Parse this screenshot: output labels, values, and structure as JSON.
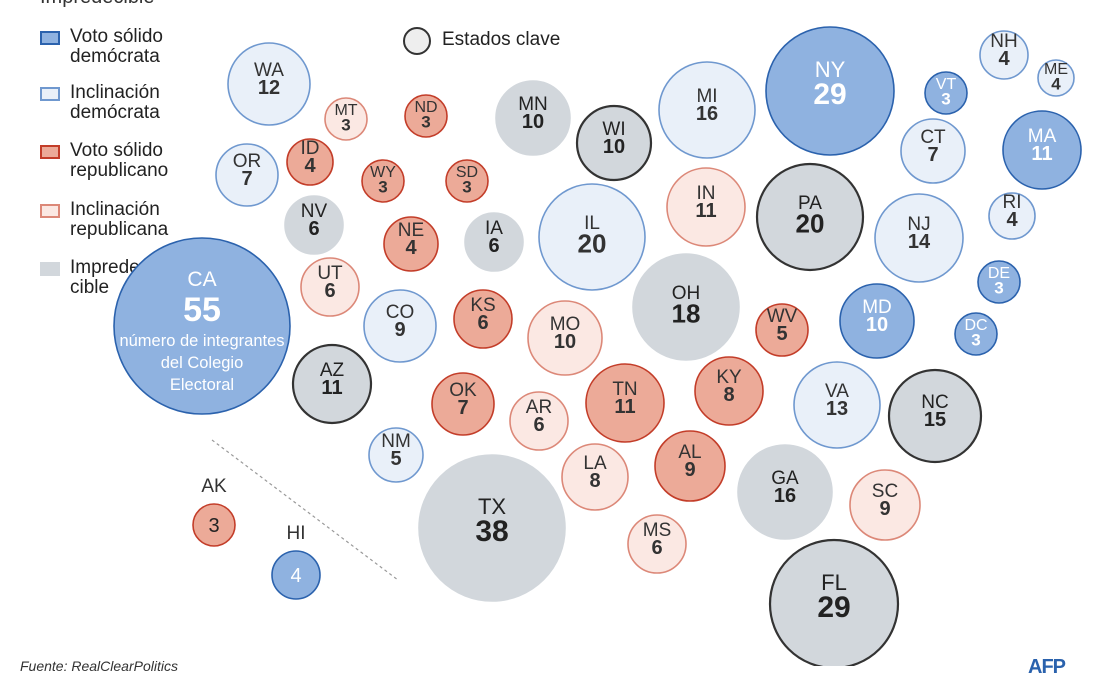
{
  "legend": {
    "title": "Impredecible",
    "items": [
      {
        "label": "Voto sólido demócrata",
        "category": "solid_dem"
      },
      {
        "label": "Inclinación demócrata",
        "category": "lean_dem"
      },
      {
        "label": "Voto sólido republicano",
        "category": "solid_rep"
      },
      {
        "label": "Inclinación republicana",
        "category": "lean_rep"
      },
      {
        "label": "Imprede-cible",
        "category": "tossup"
      }
    ],
    "key_states_label": "Estados clave"
  },
  "colors": {
    "solid_dem": {
      "fill": "#8fb2e0",
      "stroke": "#2b62ad",
      "text": "#ffffff"
    },
    "lean_dem": {
      "fill": "#e9f0f9",
      "stroke": "#6f98cf",
      "text": "#333333"
    },
    "solid_rep": {
      "fill": "#ecaa98",
      "stroke": "#c33d29",
      "text": "#333333"
    },
    "lean_rep": {
      "fill": "#fbe8e3",
      "stroke": "#dc8878",
      "text": "#333333"
    },
    "tossup": {
      "fill": "#d2d7dc",
      "stroke": "#d2d7dc",
      "text": "#222222"
    },
    "key_stroke": "#333333"
  },
  "ca_caption": [
    "número de integrantes",
    "del Colegio",
    "Electoral"
  ],
  "states": [
    {
      "abbr": "CA",
      "votes": 55,
      "category": "solid_dem",
      "key": false
    },
    {
      "abbr": "WA",
      "votes": 12,
      "category": "lean_dem",
      "key": false
    },
    {
      "abbr": "OR",
      "votes": 7,
      "category": "lean_dem",
      "key": false
    },
    {
      "abbr": "ID",
      "votes": 4,
      "category": "solid_rep",
      "key": false
    },
    {
      "abbr": "MT",
      "votes": 3,
      "category": "lean_rep",
      "key": false
    },
    {
      "abbr": "WY",
      "votes": 3,
      "category": "solid_rep",
      "key": false
    },
    {
      "abbr": "ND",
      "votes": 3,
      "category": "solid_rep",
      "key": false
    },
    {
      "abbr": "SD",
      "votes": 3,
      "category": "solid_rep",
      "key": false
    },
    {
      "abbr": "NV",
      "votes": 6,
      "category": "tossup",
      "key": false
    },
    {
      "abbr": "UT",
      "votes": 6,
      "category": "lean_rep",
      "key": false
    },
    {
      "abbr": "NE",
      "votes": 4,
      "category": "solid_rep",
      "key": false
    },
    {
      "abbr": "IA",
      "votes": 6,
      "category": "tossup",
      "key": false
    },
    {
      "abbr": "CO",
      "votes": 9,
      "category": "lean_dem",
      "key": false
    },
    {
      "abbr": "AZ",
      "votes": 11,
      "category": "tossup",
      "key": true
    },
    {
      "abbr": "NM",
      "votes": 5,
      "category": "lean_dem",
      "key": false
    },
    {
      "abbr": "KS",
      "votes": 6,
      "category": "solid_rep",
      "key": false
    },
    {
      "abbr": "OK",
      "votes": 7,
      "category": "solid_rep",
      "key": false
    },
    {
      "abbr": "TX",
      "votes": 38,
      "category": "tossup",
      "key": false
    },
    {
      "abbr": "MN",
      "votes": 10,
      "category": "tossup",
      "key": false
    },
    {
      "abbr": "WI",
      "votes": 10,
      "category": "tossup",
      "key": true
    },
    {
      "abbr": "MI",
      "votes": 16,
      "category": "lean_dem",
      "key": false
    },
    {
      "abbr": "IL",
      "votes": 20,
      "category": "lean_dem",
      "key": false
    },
    {
      "abbr": "IN",
      "votes": 11,
      "category": "lean_rep",
      "key": false
    },
    {
      "abbr": "OH",
      "votes": 18,
      "category": "tossup",
      "key": false
    },
    {
      "abbr": "MO",
      "votes": 10,
      "category": "lean_rep",
      "key": false
    },
    {
      "abbr": "AR",
      "votes": 6,
      "category": "lean_rep",
      "key": false
    },
    {
      "abbr": "LA",
      "votes": 8,
      "category": "lean_rep",
      "key": false
    },
    {
      "abbr": "MS",
      "votes": 6,
      "category": "lean_rep",
      "key": false
    },
    {
      "abbr": "TN",
      "votes": 11,
      "category": "solid_rep",
      "key": false
    },
    {
      "abbr": "KY",
      "votes": 8,
      "category": "solid_rep",
      "key": false
    },
    {
      "abbr": "AL",
      "votes": 9,
      "category": "solid_rep",
      "key": false
    },
    {
      "abbr": "GA",
      "votes": 16,
      "category": "tossup",
      "key": false
    },
    {
      "abbr": "FL",
      "votes": 29,
      "category": "tossup",
      "key": true
    },
    {
      "abbr": "SC",
      "votes": 9,
      "category": "lean_rep",
      "key": false
    },
    {
      "abbr": "NC",
      "votes": 15,
      "category": "tossup",
      "key": true
    },
    {
      "abbr": "VA",
      "votes": 13,
      "category": "lean_dem",
      "key": false
    },
    {
      "abbr": "WV",
      "votes": 5,
      "category": "solid_rep",
      "key": false
    },
    {
      "abbr": "PA",
      "votes": 20,
      "category": "tossup",
      "key": true
    },
    {
      "abbr": "NY",
      "votes": 29,
      "category": "solid_dem",
      "key": false
    },
    {
      "abbr": "NJ",
      "votes": 14,
      "category": "lean_dem",
      "key": false
    },
    {
      "abbr": "MD",
      "votes": 10,
      "category": "solid_dem",
      "key": false
    },
    {
      "abbr": "DE",
      "votes": 3,
      "category": "solid_dem",
      "key": false
    },
    {
      "abbr": "DC",
      "votes": 3,
      "category": "solid_dem",
      "key": false
    },
    {
      "abbr": "CT",
      "votes": 7,
      "category": "lean_dem",
      "key": false
    },
    {
      "abbr": "RI",
      "votes": 4,
      "category": "lean_dem",
      "key": false
    },
    {
      "abbr": "MA",
      "votes": 11,
      "category": "solid_dem",
      "key": false
    },
    {
      "abbr": "VT",
      "votes": 3,
      "category": "solid_dem",
      "key": false
    },
    {
      "abbr": "NH",
      "votes": 4,
      "category": "lean_dem",
      "key": false
    },
    {
      "abbr": "ME",
      "votes": 4,
      "category": "lean_dem",
      "key": false
    },
    {
      "abbr": "AK",
      "votes": 3,
      "category": "solid_rep",
      "key": false
    },
    {
      "abbr": "HI",
      "votes": 4,
      "category": "solid_dem",
      "key": false
    }
  ],
  "source": "Fuente: RealClearPolitics",
  "logo": "AFP"
}
